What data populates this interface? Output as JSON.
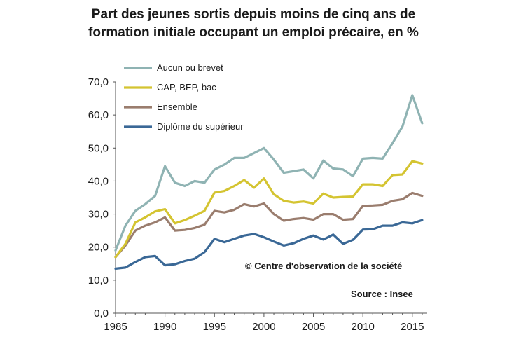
{
  "chart_data": {
    "type": "line",
    "title_lines": [
      "Part des jeunes sortis depuis moins de cinq ans de",
      "formation initiale occupant un emploi précaire, en %"
    ],
    "x": [
      1985,
      1986,
      1987,
      1988,
      1989,
      1990,
      1991,
      1992,
      1993,
      1994,
      1995,
      1996,
      1997,
      1998,
      1999,
      2000,
      2001,
      2002,
      2003,
      2004,
      2005,
      2006,
      2007,
      2008,
      2009,
      2010,
      2011,
      2012,
      2013,
      2014,
      2015,
      2016
    ],
    "x_ticks": [
      "1985",
      "1990",
      "1995",
      "2000",
      "2005",
      "2010",
      "2015"
    ],
    "y_ticks": [
      "0,0",
      "10,0",
      "20,0",
      "30,0",
      "40,0",
      "50,0",
      "60,0",
      "70,0"
    ],
    "ylim": [
      0,
      70
    ],
    "xlim": [
      1985,
      2016.5
    ],
    "grid": false,
    "legend_position": "top-left",
    "series": [
      {
        "name": "Aucun ou brevet",
        "color": "#8fb3b3",
        "values": [
          19.0,
          26.5,
          31.0,
          33.0,
          35.5,
          44.5,
          39.5,
          38.5,
          40.0,
          39.5,
          43.5,
          45.0,
          47.0,
          47.0,
          48.5,
          50.0,
          46.5,
          42.5,
          43.0,
          43.5,
          40.8,
          46.2,
          43.8,
          43.5,
          41.5,
          46.8,
          47.0,
          46.8,
          51.5,
          56.5,
          66.0,
          57.5
        ]
      },
      {
        "name": "CAP, BEP, bac",
        "color": "#d4c431",
        "values": [
          17.0,
          21.0,
          27.5,
          29.0,
          30.8,
          31.5,
          27.2,
          28.2,
          29.5,
          31.0,
          36.5,
          37.0,
          38.5,
          40.3,
          38.0,
          40.8,
          36.0,
          34.0,
          33.5,
          33.8,
          33.2,
          36.2,
          35.0,
          35.2,
          35.3,
          39.0,
          39.0,
          38.5,
          41.8,
          42.0,
          46.0,
          45.3
        ]
      },
      {
        "name": "Ensemble",
        "color": "#9a7d6e",
        "values": [
          17.0,
          20.5,
          25.0,
          26.5,
          27.5,
          29.0,
          25.0,
          25.2,
          25.8,
          26.8,
          31.0,
          30.5,
          31.3,
          33.0,
          32.3,
          33.2,
          30.0,
          28.0,
          28.5,
          28.8,
          28.3,
          30.0,
          30.0,
          28.3,
          28.5,
          32.5,
          32.6,
          32.8,
          34.0,
          34.5,
          36.4,
          35.5
        ]
      },
      {
        "name": "Diplôme du supérieur",
        "color": "#3a6896",
        "values": [
          13.5,
          13.8,
          15.5,
          17.0,
          17.3,
          14.5,
          14.8,
          15.8,
          16.5,
          18.5,
          22.5,
          21.5,
          22.5,
          23.5,
          24.0,
          23.0,
          21.7,
          20.5,
          21.2,
          22.5,
          23.5,
          22.3,
          23.8,
          21.0,
          22.2,
          25.3,
          25.4,
          26.5,
          26.5,
          27.5,
          27.2,
          28.2
        ]
      }
    ],
    "annotations": [
      "© Centre d'observation de la société",
      "Source : Insee"
    ]
  }
}
